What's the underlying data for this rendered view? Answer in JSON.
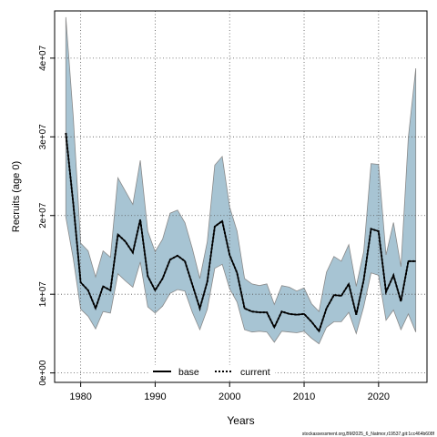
{
  "chart_data": {
    "type": "line",
    "title": "",
    "xlabel": "Years",
    "ylabel": "Recruits (age 0)",
    "xlim": [
      1976.5,
      2026.5
    ],
    "ylim": [
      -1200000,
      46000000
    ],
    "xticks": [
      1980,
      1990,
      2000,
      2010,
      2020
    ],
    "yticks": [
      0,
      10000000,
      20000000,
      30000000,
      40000000
    ],
    "ytick_labels": [
      "0e+00",
      "1e+07",
      "2e+07",
      "3e+07",
      "4e+07"
    ],
    "grid": true,
    "legend_position": "bottom-center",
    "footer": "stockassessment.org,BM2025_6_Natmor,r19537,git:1cc464b608f",
    "x": [
      1978,
      1979,
      1980,
      1981,
      1982,
      1983,
      1984,
      1985,
      1986,
      1987,
      1988,
      1989,
      1990,
      1991,
      1992,
      1993,
      1994,
      1995,
      1996,
      1997,
      1998,
      1999,
      2000,
      2001,
      2002,
      2003,
      2004,
      2005,
      2006,
      2007,
      2008,
      2009,
      2010,
      2011,
      2012,
      2013,
      2014,
      2015,
      2016,
      2017,
      2018,
      2019,
      2020,
      2021,
      2022,
      2023,
      2024,
      2025
    ],
    "series": [
      {
        "name": "base",
        "color": "#000000",
        "style": "solid",
        "values": [
          30500000,
          21500000,
          11500000,
          10500000,
          8200000,
          11000000,
          10500000,
          17600000,
          16700000,
          15300000,
          19500000,
          12300000,
          10500000,
          12000000,
          14400000,
          14900000,
          14200000,
          11200000,
          8200000,
          11600000,
          18600000,
          19300000,
          15000000,
          12700000,
          8200000,
          7800000,
          7700000,
          7700000,
          5800000,
          7800000,
          7500000,
          7400000,
          7500000,
          6500000,
          5300000,
          8200000,
          9900000,
          9800000,
          11300000,
          7400000,
          11800000,
          18300000,
          18000000,
          10300000,
          12400000,
          9100000,
          14200000,
          14200000
        ]
      },
      {
        "name": "current",
        "color": "#000000",
        "style": "dotted",
        "values": [
          30500000,
          21500000,
          11500000,
          10500000,
          8200000,
          11000000,
          10500000,
          17600000,
          16700000,
          15300000,
          19500000,
          12300000,
          10500000,
          12000000,
          14400000,
          14900000,
          14200000,
          11200000,
          8200000,
          11600000,
          18600000,
          19300000,
          15000000,
          12700000,
          8200000,
          7800000,
          7700000,
          7700000,
          5800000,
          7800000,
          7500000,
          7400000,
          7500000,
          6500000,
          5300000,
          8200000,
          9900000,
          9800000,
          11300000,
          7400000,
          11800000,
          18300000,
          18000000,
          10300000,
          12400000,
          9100000,
          14200000,
          14200000
        ]
      }
    ],
    "band": {
      "color": "#a7c4d3",
      "edge": "#8a8a8a",
      "upper": [
        45200000,
        32500000,
        16500000,
        15500000,
        12200000,
        15500000,
        14700000,
        24800000,
        23100000,
        21400000,
        27000000,
        18000000,
        15400000,
        17000000,
        20300000,
        20700000,
        19100000,
        15800000,
        12000000,
        16700000,
        26400000,
        27500000,
        21100000,
        18000000,
        12000000,
        11300000,
        11100000,
        11300000,
        8700000,
        11100000,
        10900000,
        10400000,
        10800000,
        8800000,
        7800000,
        12800000,
        14800000,
        14200000,
        16300000,
        11000000,
        15400000,
        26600000,
        26500000,
        15000000,
        19100000,
        13500000,
        29900000,
        38700000
      ],
      "lower": [
        19800000,
        14500000,
        8100000,
        7200000,
        5600000,
        7800000,
        7600000,
        12600000,
        11700000,
        10900000,
        14100000,
        8400000,
        7600000,
        8500000,
        10100000,
        10600000,
        10400000,
        7700000,
        5500000,
        8100000,
        13300000,
        13800000,
        10700000,
        9000000,
        5500000,
        5200000,
        5300000,
        5200000,
        3900000,
        5300000,
        5200000,
        5100000,
        5300000,
        4400000,
        3700000,
        5800000,
        6500000,
        6500000,
        7700000,
        5000000,
        8400000,
        12700000,
        12400000,
        6700000,
        8000000,
        5500000,
        7500000,
        5200000
      ]
    }
  }
}
